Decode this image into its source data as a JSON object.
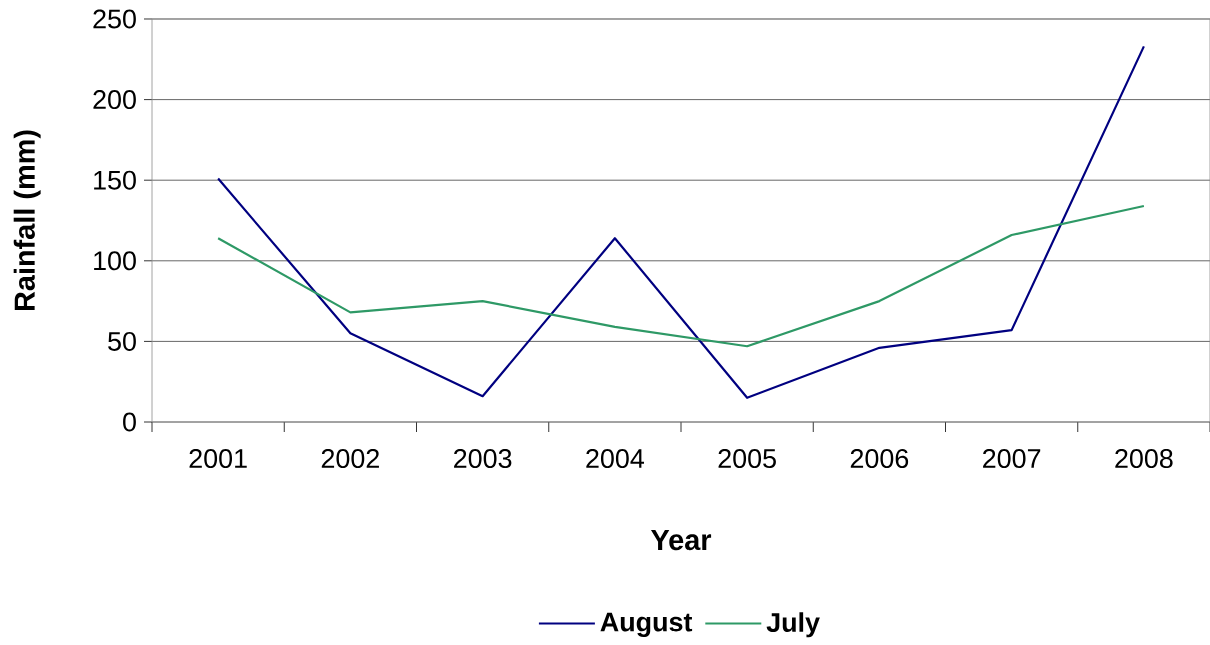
{
  "chart_data": {
    "type": "line",
    "xlabel": "Year",
    "ylabel": "Rainfall (mm)",
    "categories": [
      "2001",
      "2002",
      "2003",
      "2004",
      "2005",
      "2006",
      "2007",
      "2008"
    ],
    "series": [
      {
        "name": "August",
        "color": "#000080",
        "values": [
          151,
          55,
          16,
          114,
          15,
          46,
          57,
          233
        ]
      },
      {
        "name": "July",
        "color": "#2e9966",
        "values": [
          114,
          68,
          75,
          59,
          47,
          75,
          116,
          134
        ]
      }
    ],
    "ylim": [
      0,
      250
    ],
    "yticks": [
      0,
      50,
      100,
      150,
      200,
      250
    ],
    "grid": "y",
    "legend": "bottom",
    "marker": "none",
    "line_style": "solid"
  }
}
